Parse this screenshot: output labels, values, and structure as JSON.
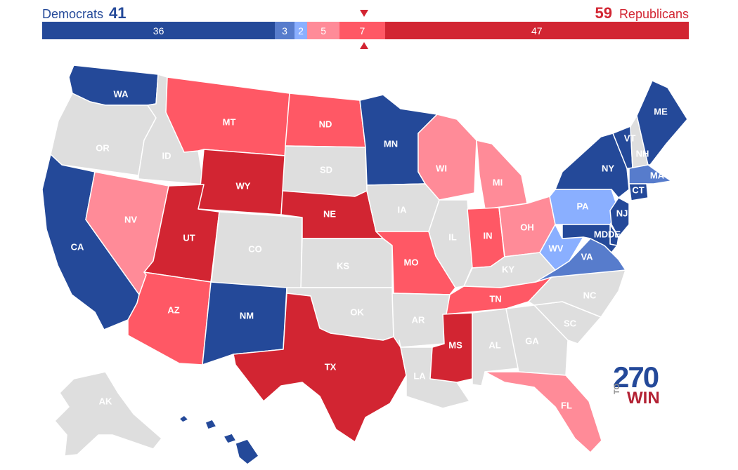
{
  "header": {
    "dem_label": "Democrats",
    "dem_total": "41",
    "rep_label": "Republicans",
    "rep_total": "59"
  },
  "colors": {
    "safe_dem": "#244999",
    "likely_dem": "#577ccc",
    "lean_dem": "#8aafff",
    "lean_rep": "#ff8b98",
    "likely_rep": "#ff5865",
    "safe_rep": "#d22532",
    "tossup": "#dedede",
    "no_race": "#dedede"
  },
  "bar": [
    {
      "label": "36",
      "value": 36,
      "category": "safe_dem"
    },
    {
      "label": "3",
      "value": 3,
      "category": "likely_dem"
    },
    {
      "label": "2",
      "value": 2,
      "category": "lean_dem"
    },
    {
      "label": "5",
      "value": 5,
      "category": "lean_rep"
    },
    {
      "label": "7",
      "value": 7,
      "category": "likely_rep"
    },
    {
      "label": "47",
      "value": 47,
      "category": "safe_rep"
    }
  ],
  "states": [
    {
      "abbr": "WA",
      "category": "safe_dem"
    },
    {
      "abbr": "OR",
      "category": "no_race"
    },
    {
      "abbr": "CA",
      "category": "safe_dem"
    },
    {
      "abbr": "ID",
      "category": "no_race"
    },
    {
      "abbr": "NV",
      "category": "lean_rep"
    },
    {
      "abbr": "MT",
      "category": "likely_rep"
    },
    {
      "abbr": "WY",
      "category": "safe_rep"
    },
    {
      "abbr": "UT",
      "category": "safe_rep"
    },
    {
      "abbr": "AZ",
      "category": "likely_rep"
    },
    {
      "abbr": "CO",
      "category": "no_race"
    },
    {
      "abbr": "NM",
      "category": "safe_dem"
    },
    {
      "abbr": "ND",
      "category": "likely_rep"
    },
    {
      "abbr": "SD",
      "category": "no_race"
    },
    {
      "abbr": "NE",
      "category": "safe_rep"
    },
    {
      "abbr": "KS",
      "category": "no_race"
    },
    {
      "abbr": "OK",
      "category": "no_race"
    },
    {
      "abbr": "TX",
      "category": "safe_rep"
    },
    {
      "abbr": "MN",
      "category": "safe_dem"
    },
    {
      "abbr": "IA",
      "category": "no_race"
    },
    {
      "abbr": "MO",
      "category": "likely_rep"
    },
    {
      "abbr": "AR",
      "category": "no_race"
    },
    {
      "abbr": "LA",
      "category": "no_race"
    },
    {
      "abbr": "WI",
      "category": "lean_rep"
    },
    {
      "abbr": "IL",
      "category": "no_race"
    },
    {
      "abbr": "MI",
      "category": "lean_rep"
    },
    {
      "abbr": "IN",
      "category": "likely_rep"
    },
    {
      "abbr": "OH",
      "category": "lean_rep"
    },
    {
      "abbr": "KY",
      "category": "no_race"
    },
    {
      "abbr": "TN",
      "category": "likely_rep"
    },
    {
      "abbr": "MS",
      "category": "safe_rep"
    },
    {
      "abbr": "AL",
      "category": "no_race"
    },
    {
      "abbr": "GA",
      "category": "no_race"
    },
    {
      "abbr": "FL",
      "category": "lean_rep"
    },
    {
      "abbr": "SC",
      "category": "no_race"
    },
    {
      "abbr": "NC",
      "category": "no_race"
    },
    {
      "abbr": "VA",
      "category": "likely_dem"
    },
    {
      "abbr": "WV",
      "category": "lean_dem"
    },
    {
      "abbr": "PA",
      "category": "lean_dem"
    },
    {
      "abbr": "NY",
      "category": "safe_dem"
    },
    {
      "abbr": "VT",
      "category": "safe_dem"
    },
    {
      "abbr": "NH",
      "category": "no_race"
    },
    {
      "abbr": "ME",
      "category": "safe_dem"
    },
    {
      "abbr": "MA",
      "category": "likely_dem"
    },
    {
      "abbr": "CT",
      "category": "safe_dem"
    },
    {
      "abbr": "NJ",
      "category": "safe_dem"
    },
    {
      "abbr": "DE",
      "category": "safe_dem"
    },
    {
      "abbr": "MD",
      "category": "safe_dem"
    },
    {
      "abbr": "AK",
      "category": "no_race"
    },
    {
      "abbr": "HI",
      "category": "safe_dem"
    }
  ],
  "logo": {
    "number": "270",
    "to": "TO",
    "win": "WIN"
  }
}
